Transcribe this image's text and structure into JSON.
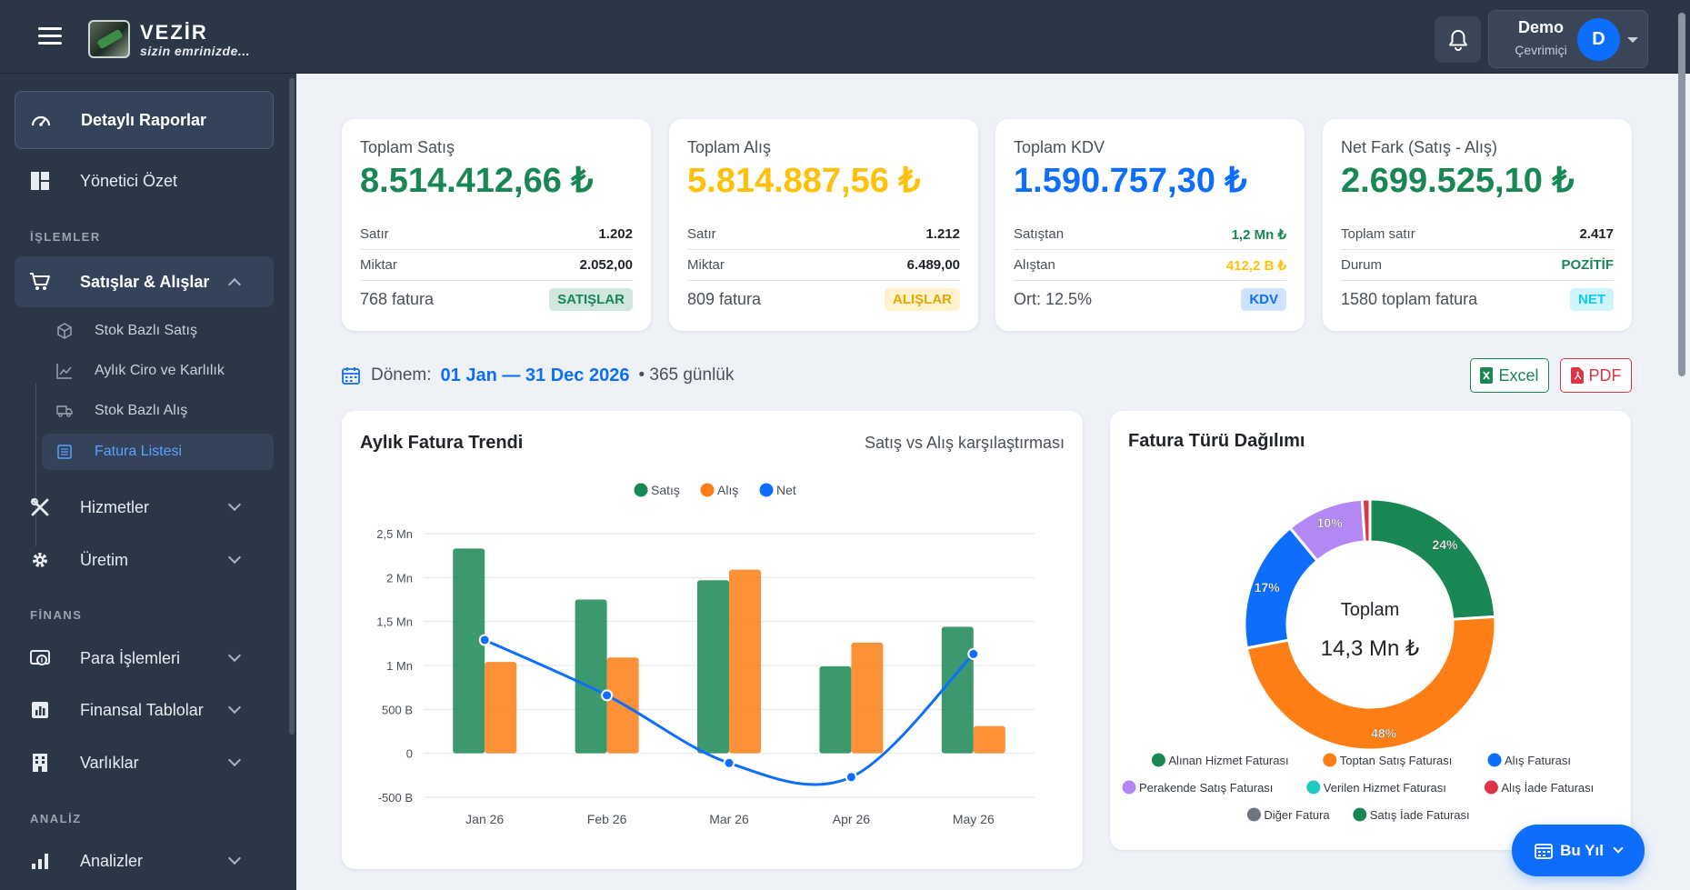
{
  "app": {
    "name": "VEZİR",
    "tagline": "sizin emrinizde..."
  },
  "user": {
    "name": "Demo",
    "status": "Çevrimiçi",
    "initial": "D"
  },
  "sidebar": {
    "top": [
      {
        "label": "Detaylı Raporlar"
      },
      {
        "label": "Yönetici Özet"
      }
    ],
    "sections": {
      "islemler": "İŞLEMLER",
      "finans": "FİNANS",
      "analiz": "ANALİZ"
    },
    "satislar": {
      "label": "Satışlar & Alışlar",
      "sub": [
        {
          "label": "Stok Bazlı Satış"
        },
        {
          "label": "Aylık Ciro ve Karlılık"
        },
        {
          "label": "Stok Bazlı Alış"
        },
        {
          "label": "Fatura Listesi"
        }
      ]
    },
    "hizmetler": "Hizmetler",
    "uretim": "Üretim",
    "para": "Para İşlemleri",
    "finansal": "Finansal Tablolar",
    "varliklar": "Varlıklar",
    "analizler": "Analizler"
  },
  "cards": [
    {
      "title": "Toplam Satış",
      "value": "8.514.412,66 ₺",
      "color": "#198754",
      "r1k": "Satır",
      "r1v": "1.202",
      "r2k": "Miktar",
      "r2v": "2.052,00",
      "foot": "768 fatura",
      "badge": "SATIŞLAR"
    },
    {
      "title": "Toplam Alış",
      "value": "5.814.887,56 ₺",
      "color": "#ffc107",
      "r1k": "Satır",
      "r1v": "1.212",
      "r2k": "Miktar",
      "r2v": "6.489,00",
      "foot": "809 fatura",
      "badge": "ALIŞLAR"
    },
    {
      "title": "Toplam KDV",
      "value": "1.590.757,30 ₺",
      "color": "#0d6efd",
      "r1k": "Satıştan",
      "r1v": "1,2 Mn ₺",
      "r2k": "Alıştan",
      "r2v": "412,2 B ₺",
      "foot": "Ort: 12.5%",
      "badge": "KDV"
    },
    {
      "title": "Net Fark (Satış - Alış)",
      "value": "2.699.525,10 ₺",
      "color": "#198754",
      "r1k": "Toplam satır",
      "r1v": "2.417",
      "r2k": "Durum",
      "r2v": "POZİTİF",
      "foot": "1580 toplam fatura",
      "badge": "NET"
    }
  ],
  "period": {
    "label": "Dönem:",
    "range": "01 Jan — 31 Dec 2026",
    "days": "• 365 günlük"
  },
  "export": {
    "excel": "Excel",
    "pdf": "PDF"
  },
  "trend": {
    "title": "Aylık Fatura Trendi",
    "subtitle": "Satış vs Alış karşılaştırması"
  },
  "donut_panel": {
    "title": "Fatura Türü Dağılımı",
    "center_label": "Toplam",
    "center_value": "14,3 Mn ₺"
  },
  "fab": {
    "label": "Bu Yıl"
  },
  "chart_data": [
    {
      "type": "bar",
      "title": "Aylık Fatura Trendi",
      "categories": [
        "Jan 26",
        "Feb 26",
        "Mar 26",
        "Apr 26",
        "May 26"
      ],
      "series": [
        {
          "name": "Satış",
          "type": "bar",
          "color": "#198754",
          "values": [
            2330000,
            1750000,
            1970000,
            990000,
            1440000
          ]
        },
        {
          "name": "Alış",
          "type": "bar",
          "color": "#fd7e14",
          "values": [
            1040000,
            1090000,
            2090000,
            1260000,
            310000
          ]
        },
        {
          "name": "Net",
          "type": "line",
          "color": "#0d6efd",
          "values": [
            1290000,
            660000,
            -110000,
            -270000,
            1130000
          ]
        }
      ],
      "ylim": [
        -500000,
        2500000
      ],
      "yticks": [
        {
          "value": 2500000,
          "label": "2,5 Mn"
        },
        {
          "value": 2000000,
          "label": "2 Mn"
        },
        {
          "value": 1500000,
          "label": "1,5 Mn"
        },
        {
          "value": 1000000,
          "label": "1 Mn"
        },
        {
          "value": 500000,
          "label": "500 B"
        },
        {
          "value": 0,
          "label": "0"
        },
        {
          "value": -500000,
          "label": "-500 B"
        }
      ],
      "legend": "top-center",
      "grid": true
    },
    {
      "type": "pie",
      "title": "Fatura Türü Dağılımı",
      "slices": [
        {
          "name": "Alınan Hizmet Faturası",
          "value": 24,
          "color": "#198754",
          "label": "24%"
        },
        {
          "name": "Toptan Satış Faturası",
          "value": 48,
          "color": "#fd7e14",
          "label": "48%"
        },
        {
          "name": "Alış Faturası",
          "value": 17,
          "color": "#0d6efd",
          "label": "17%"
        },
        {
          "name": "Perakende Satış Faturası",
          "value": 10,
          "color": "#b388f5",
          "label": "10%"
        },
        {
          "name": "Verilen Hizmet Faturası",
          "value": 0,
          "color": "#20c9c0",
          "label": ""
        },
        {
          "name": "Alış İade Faturası",
          "value": 1,
          "color": "#dc3545",
          "label": ""
        },
        {
          "name": "Diğer Fatura",
          "value": 0,
          "color": "#6c757d",
          "label": ""
        },
        {
          "name": "Satış İade Faturası",
          "value": 0,
          "color": "#198754",
          "label": ""
        }
      ],
      "legend": "bottom"
    }
  ]
}
